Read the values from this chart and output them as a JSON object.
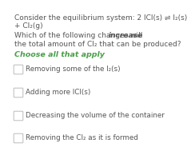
{
  "background_color": "#ffffff",
  "text_color": "#555555",
  "choose_color": "#4a9e4a",
  "line1": "Consider the equilibrium system: 2 ICl(s) ⇌ I₂(s)",
  "line2": "+ Cl₂(g)",
  "q_line1_pre": "Which of the following changes will ",
  "q_line1_bold": "increase",
  "q_line2": "the total amount of Cl₂ that can be produced?",
  "choose_text": "Choose all that apply",
  "options": [
    "Removing some of the I₂(s)",
    "Adding more ICl(s)",
    "Decreasing the volume of the container",
    "Removing the Cl₂ as it is formed"
  ],
  "checkbox_color": "#bbbbbb",
  "font_size_body": 6.5,
  "font_size_choose": 6.8,
  "font_size_options": 6.3
}
